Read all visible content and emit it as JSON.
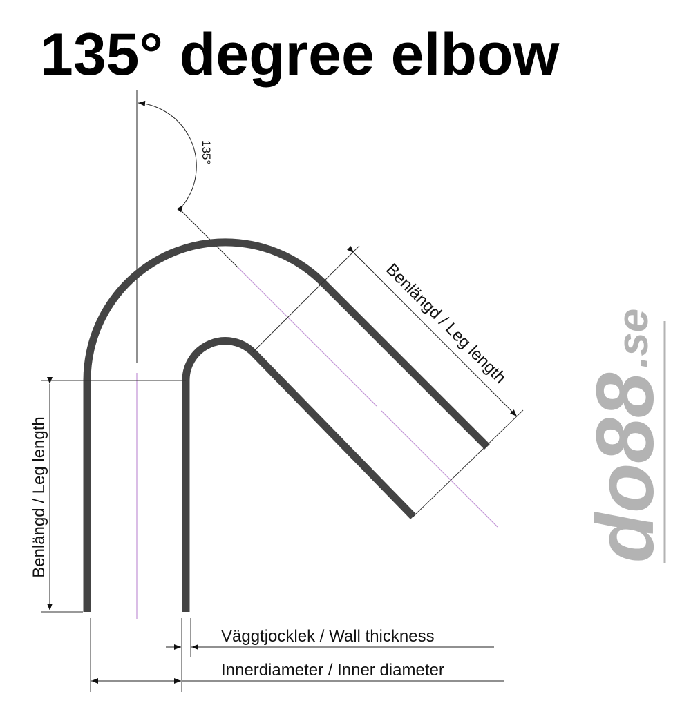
{
  "title": "135° degree elbow",
  "angle_label": "135°",
  "leg_length_label": "Benlängd / Leg length",
  "wall_thickness_label": "Väggtjocklek / Wall thickness",
  "inner_diameter_label": "Innerdiameter / Inner diameter",
  "logo": {
    "main": "do88",
    "suffix": ".se"
  },
  "colors": {
    "pipe": "#444444",
    "centerline": "#c59ad8",
    "dimension": "#222222",
    "logo": "#b3b3b3"
  }
}
